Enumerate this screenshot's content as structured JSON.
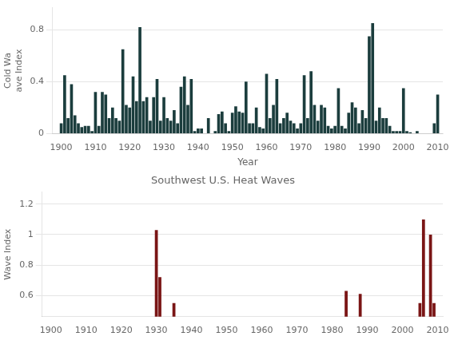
{
  "chart_data": [
    {
      "type": "bar",
      "x_label": "Year",
      "y_label": "Cold Wa\nave Index",
      "color": "#1b3d3d",
      "x": [
        1900,
        1901,
        1902,
        1903,
        1904,
        1905,
        1906,
        1907,
        1908,
        1909,
        1910,
        1911,
        1912,
        1913,
        1914,
        1915,
        1916,
        1917,
        1918,
        1919,
        1920,
        1921,
        1922,
        1923,
        1924,
        1925,
        1926,
        1927,
        1928,
        1929,
        1930,
        1931,
        1932,
        1933,
        1934,
        1935,
        1936,
        1937,
        1938,
        1939,
        1940,
        1941,
        1942,
        1943,
        1944,
        1945,
        1946,
        1947,
        1948,
        1949,
        1950,
        1951,
        1952,
        1953,
        1954,
        1955,
        1956,
        1957,
        1958,
        1959,
        1960,
        1961,
        1962,
        1963,
        1964,
        1965,
        1966,
        1967,
        1968,
        1969,
        1970,
        1971,
        1972,
        1973,
        1974,
        1975,
        1976,
        1977,
        1978,
        1979,
        1980,
        1981,
        1982,
        1983,
        1984,
        1985,
        1986,
        1987,
        1988,
        1989,
        1990,
        1991,
        1992,
        1993,
        1994,
        1995,
        1996,
        1997,
        1998,
        1999,
        2000,
        2001,
        2002,
        2003,
        2004,
        2005,
        2006,
        2007,
        2008,
        2009,
        2010
      ],
      "values": [
        0.08,
        0.45,
        0.12,
        0.38,
        0.14,
        0.08,
        0.05,
        0.06,
        0.06,
        0.02,
        0.32,
        0.06,
        0.32,
        0.3,
        0.12,
        0.2,
        0.12,
        0.1,
        0.65,
        0.22,
        0.2,
        0.44,
        0.25,
        0.82,
        0.25,
        0.28,
        0.1,
        0.28,
        0.42,
        0.1,
        0.28,
        0.12,
        0.1,
        0.18,
        0.08,
        0.36,
        0.44,
        0.22,
        0.42,
        0.02,
        0.04,
        0.04,
        0.0,
        0.12,
        0.0,
        0.02,
        0.15,
        0.17,
        0.08,
        0.02,
        0.16,
        0.21,
        0.17,
        0.16,
        0.4,
        0.08,
        0.08,
        0.2,
        0.05,
        0.04,
        0.46,
        0.12,
        0.22,
        0.42,
        0.08,
        0.12,
        0.16,
        0.1,
        0.08,
        0.04,
        0.08,
        0.45,
        0.12,
        0.48,
        0.22,
        0.1,
        0.22,
        0.2,
        0.06,
        0.04,
        0.06,
        0.35,
        0.06,
        0.04,
        0.16,
        0.24,
        0.2,
        0.08,
        0.18,
        0.12,
        0.75,
        0.85,
        0.1,
        0.2,
        0.12,
        0.12,
        0.06,
        0.02,
        0.02,
        0.02,
        0.35,
        0.02,
        0.01,
        0.0,
        0.02,
        0.0,
        0.0,
        0.0,
        0.0,
        0.08,
        0.3
      ],
      "xlim": [
        1897.5,
        2011.5
      ],
      "xticks": [
        1900,
        1910,
        1920,
        1930,
        1940,
        1950,
        1960,
        1970,
        1980,
        1990,
        2000,
        2010
      ],
      "ylim": [
        0,
        0.97
      ],
      "yticks": [
        0,
        0.4,
        0.8
      ],
      "grid": true
    },
    {
      "type": "bar",
      "title": "Southwest U.S. Heat Waves",
      "y_label": "Wave Index",
      "color": "#7a1515",
      "x": [
        1900,
        1901,
        1902,
        1903,
        1904,
        1905,
        1906,
        1907,
        1908,
        1909,
        1910,
        1911,
        1912,
        1913,
        1914,
        1915,
        1916,
        1917,
        1918,
        1919,
        1920,
        1921,
        1922,
        1923,
        1924,
        1925,
        1926,
        1927,
        1928,
        1929,
        1930,
        1931,
        1932,
        1933,
        1934,
        1935,
        1936,
        1937,
        1938,
        1939,
        1940,
        1941,
        1942,
        1943,
        1944,
        1945,
        1946,
        1947,
        1948,
        1949,
        1950,
        1951,
        1952,
        1953,
        1954,
        1955,
        1956,
        1957,
        1958,
        1959,
        1960,
        1961,
        1962,
        1963,
        1964,
        1965,
        1966,
        1967,
        1968,
        1969,
        1970,
        1971,
        1972,
        1973,
        1974,
        1975,
        1976,
        1977,
        1978,
        1979,
        1980,
        1981,
        1982,
        1983,
        1984,
        1985,
        1986,
        1987,
        1988,
        1989,
        1990,
        1991,
        1992,
        1993,
        1994,
        1995,
        1996,
        1997,
        1998,
        1999,
        2000,
        2001,
        2002,
        2003,
        2004,
        2005,
        2006,
        2007,
        2008,
        2009,
        2010
      ],
      "values": [
        null,
        null,
        null,
        null,
        null,
        null,
        null,
        null,
        null,
        null,
        null,
        null,
        null,
        null,
        null,
        null,
        null,
        null,
        null,
        null,
        null,
        null,
        null,
        null,
        null,
        null,
        null,
        null,
        null,
        null,
        1.03,
        0.72,
        null,
        null,
        null,
        0.55,
        null,
        null,
        null,
        null,
        null,
        null,
        null,
        null,
        null,
        null,
        null,
        null,
        null,
        null,
        null,
        null,
        null,
        null,
        null,
        null,
        null,
        null,
        null,
        null,
        null,
        null,
        null,
        null,
        null,
        null,
        null,
        null,
        null,
        null,
        null,
        null,
        null,
        null,
        null,
        null,
        null,
        null,
        null,
        null,
        null,
        null,
        null,
        null,
        0.63,
        null,
        null,
        null,
        0.61,
        null,
        null,
        null,
        null,
        null,
        null,
        null,
        null,
        null,
        null,
        null,
        null,
        null,
        null,
        null,
        null,
        0.55,
        1.1,
        null,
        1.0,
        0.55,
        null
      ],
      "xlim": [
        1897.5,
        2011.5
      ],
      "xticks": [
        1900,
        1910,
        1920,
        1930,
        1940,
        1950,
        1960,
        1970,
        1980,
        1990,
        2000,
        2010
      ],
      "ylim": [
        0.46,
        1.28
      ],
      "yticks": [
        0.6,
        0.8,
        1,
        1.2
      ],
      "grid": true
    }
  ]
}
